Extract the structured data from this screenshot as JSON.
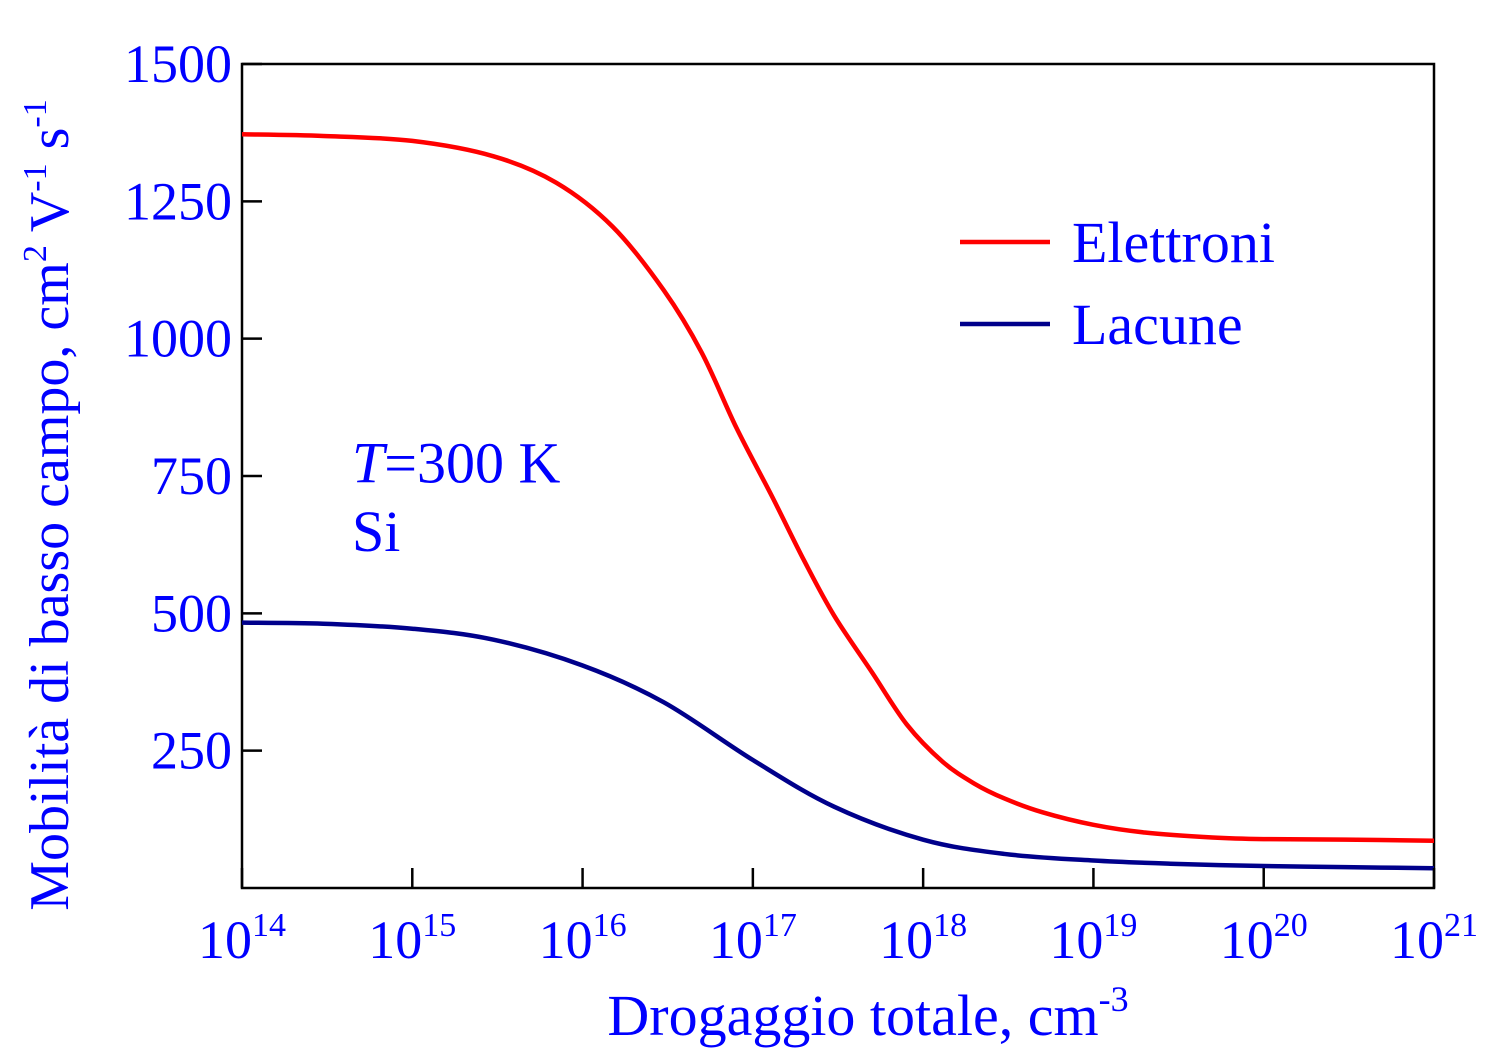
{
  "chart_data": {
    "type": "line",
    "xscale": "log",
    "xlim": [
      100000000000000.0,
      1e+21
    ],
    "ylim": [
      0,
      1500
    ],
    "xlabel": {
      "base": "Drogaggio totale, cm",
      "sup": "-3"
    },
    "ylabel": {
      "parts": [
        {
          "t": "Mobilità di basso campo, cm",
          "sup": false
        },
        {
          "t": "2",
          "sup": true
        },
        {
          "t": " V",
          "sup": false
        },
        {
          "t": "-1",
          "sup": true
        },
        {
          "t": " s",
          "sup": false
        },
        {
          "t": "-1",
          "sup": true
        }
      ]
    },
    "xticks": [
      {
        "value": 100000000000000.0,
        "base": "10",
        "exp": "14"
      },
      {
        "value": 1000000000000000.0,
        "base": "10",
        "exp": "15"
      },
      {
        "value": 1e+16,
        "base": "10",
        "exp": "16"
      },
      {
        "value": 1e+17,
        "base": "10",
        "exp": "17"
      },
      {
        "value": 1e+18,
        "base": "10",
        "exp": "18"
      },
      {
        "value": 1e+19,
        "base": "10",
        "exp": "19"
      },
      {
        "value": 1e+20,
        "base": "10",
        "exp": "20"
      },
      {
        "value": 1e+21,
        "base": "10",
        "exp": "21"
      }
    ],
    "yticks": [
      {
        "value": 250,
        "label": "250"
      },
      {
        "value": 500,
        "label": "500"
      },
      {
        "value": 750,
        "label": "750"
      },
      {
        "value": 1000,
        "label": "1000"
      },
      {
        "value": 1250,
        "label": "1250"
      },
      {
        "value": 1500,
        "label": "1500"
      }
    ],
    "series": [
      {
        "name": "Elettroni",
        "color": "#ff0000",
        "x": [
          100000000000000.0,
          300000000000000.0,
          1000000000000000.0,
          3000000000000000.0,
          7000000000000000.0,
          1.5e+16,
          3e+16,
          5e+16,
          8e+16,
          1.3e+17,
          2e+17,
          3e+17,
          5e+17,
          8e+17,
          1.3e+18,
          2e+18,
          3e+18,
          5e+18,
          1e+19,
          2e+19,
          5e+19,
          1e+20,
          3e+20,
          1e+21
        ],
        "values": [
          1372,
          1369,
          1360,
          1332,
          1284,
          1204,
          1088,
          975,
          838,
          712,
          596,
          496,
          393,
          298,
          230,
          190,
          163,
          138,
          115,
          101,
          92,
          89,
          88,
          86
        ]
      },
      {
        "name": "Lacune",
        "color": "#00008b",
        "x": [
          100000000000000.0,
          300000000000000.0,
          1000000000000000.0,
          3000000000000000.0,
          1e+16,
          3e+16,
          1e+17,
          3e+17,
          1e+18,
          3e+18,
          1e+19,
          3e+19,
          1e+20,
          3e+20,
          1e+21
        ],
        "values": [
          483,
          481,
          472,
          452,
          405,
          338,
          233,
          148,
          88,
          62,
          50,
          44,
          40,
          38,
          36
        ]
      }
    ],
    "annotations": [
      {
        "id": "temp",
        "parts": [
          {
            "t": "T",
            "italic": true
          },
          {
            "t": "=300 K",
            "italic": false
          }
        ],
        "x": 100000000000000.0,
        "y": 775
      },
      {
        "id": "material",
        "parts": [
          {
            "t": "Si",
            "italic": false
          }
        ],
        "x": 100000000000000.0,
        "y": 650
      }
    ],
    "legend": "top-right",
    "grid": false,
    "colors": {
      "text": "#0000ff",
      "axis": "#000000"
    }
  }
}
